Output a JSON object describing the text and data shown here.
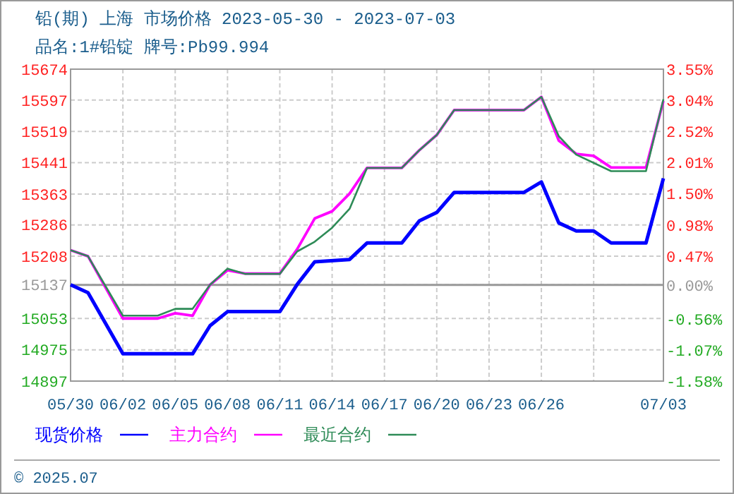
{
  "chart_data": {
    "type": "line",
    "title": "铅(期) 上海 市场价格 2023-05-30 - 2023-07-03",
    "subtitle": "品名:1#铅锭 牌号:Pb99.994",
    "xlim": [
      "2023-05-30",
      "2023-07-03"
    ],
    "xticks": [
      {
        "value": "2023-05-30",
        "label": "05/30"
      },
      {
        "value": "2023-06-02",
        "label": "06/02"
      },
      {
        "value": "2023-06-05",
        "label": "06/05"
      },
      {
        "value": "2023-06-08",
        "label": "06/08"
      },
      {
        "value": "2023-06-11",
        "label": "06/11"
      },
      {
        "value": "2023-06-14",
        "label": "06/14"
      },
      {
        "value": "2023-06-17",
        "label": "06/17"
      },
      {
        "value": "2023-06-20",
        "label": "06/20"
      },
      {
        "value": "2023-06-23",
        "label": "06/23"
      },
      {
        "value": "2023-06-26",
        "label": "06/26"
      },
      {
        "value": "2023-06-29",
        "label": null
      },
      {
        "value": "2023-07-03",
        "label": "07/03"
      }
    ],
    "ylim": [
      14897,
      15674
    ],
    "yticks": [
      14897,
      14975,
      15053,
      15137,
      15208,
      15286,
      15363,
      15441,
      15519,
      15597,
      15674
    ],
    "y2lim": [
      -1.58,
      3.55
    ],
    "y2ticks": [
      {
        "value": -1.58,
        "label": "-1.58%"
      },
      {
        "value": -1.07,
        "label": "-1.07%"
      },
      {
        "value": -0.56,
        "label": "-0.56%"
      },
      {
        "value": 0,
        "label": "0.00%"
      },
      {
        "value": 0.47,
        "label": "0.47%"
      },
      {
        "value": 0.98,
        "label": "0.98%"
      },
      {
        "value": 1.5,
        "label": "1.50%"
      },
      {
        "value": 2.01,
        "label": "2.01%"
      },
      {
        "value": 2.52,
        "label": "2.52%"
      },
      {
        "value": 3.04,
        "label": "3.04%"
      },
      {
        "value": 3.55,
        "label": "3.55%"
      }
    ],
    "grid": true,
    "legend": "bottom",
    "line_style": "solid",
    "ref_lines": [
      {
        "axis": "y2",
        "value": 0,
        "color": "#999999"
      }
    ],
    "annotations": [
      "© 2025.07"
    ],
    "series": [
      {
        "name": "现货价格",
        "color": "#0000ff",
        "x": [
          "2023-05-30",
          "2023-05-31",
          "2023-06-02",
          "2023-06-06",
          "2023-06-07",
          "2023-06-08",
          "2023-06-11",
          "2023-06-12",
          "2023-06-13",
          "2023-06-15",
          "2023-06-16",
          "2023-06-18",
          "2023-06-19",
          "2023-06-20",
          "2023-06-21",
          "2023-06-25",
          "2023-06-26",
          "2023-06-27",
          "2023-06-28",
          "2023-06-29",
          "2023-06-30",
          "2023-07-02",
          "2023-07-03"
        ],
        "values": [
          15137,
          15117,
          14965,
          14965,
          15035,
          15070,
          15070,
          15138,
          15194,
          15200,
          15241,
          15241,
          15296,
          15317,
          15367,
          15367,
          15393,
          15291,
          15271,
          15271,
          15241,
          15241,
          15402
        ]
      },
      {
        "name": "主力合约",
        "color": "#ff00ff",
        "x": [
          "2023-05-30",
          "2023-05-31",
          "2023-06-02",
          "2023-06-04",
          "2023-06-05",
          "2023-06-06",
          "2023-06-07",
          "2023-06-08",
          "2023-06-09",
          "2023-06-11",
          "2023-06-12",
          "2023-06-13",
          "2023-06-14",
          "2023-06-15",
          "2023-06-16",
          "2023-06-18",
          "2023-06-19",
          "2023-06-20",
          "2023-06-21",
          "2023-06-25",
          "2023-06-26",
          "2023-06-27",
          "2023-06-28",
          "2023-06-29",
          "2023-06-30",
          "2023-07-02",
          "2023-07-03"
        ],
        "values": [
          15223,
          15208,
          15053,
          15053,
          15066,
          15060,
          15137,
          15173,
          15165,
          15165,
          15226,
          15302,
          15320,
          15364,
          15428,
          15428,
          15472,
          15510,
          15572,
          15572,
          15605,
          15496,
          15463,
          15458,
          15429,
          15429,
          15595
        ]
      },
      {
        "name": "最近合约",
        "color": "#2e8b57",
        "x": [
          "2023-05-30",
          "2023-05-31",
          "2023-06-02",
          "2023-06-04",
          "2023-06-05",
          "2023-06-06",
          "2023-06-07",
          "2023-06-08",
          "2023-06-09",
          "2023-06-11",
          "2023-06-12",
          "2023-06-13",
          "2023-06-14",
          "2023-06-15",
          "2023-06-16",
          "2023-06-18",
          "2023-06-19",
          "2023-06-20",
          "2023-06-21",
          "2023-06-25",
          "2023-06-26",
          "2023-06-27",
          "2023-06-28",
          "2023-06-30",
          "2023-07-02",
          "2023-07-03"
        ],
        "values": [
          15223,
          15208,
          15060,
          15060,
          15077,
          15077,
          15137,
          15177,
          15164,
          15164,
          15220,
          15244,
          15279,
          15326,
          15428,
          15428,
          15472,
          15510,
          15572,
          15572,
          15605,
          15507,
          15461,
          15420,
          15420,
          15599
        ]
      }
    ]
  }
}
